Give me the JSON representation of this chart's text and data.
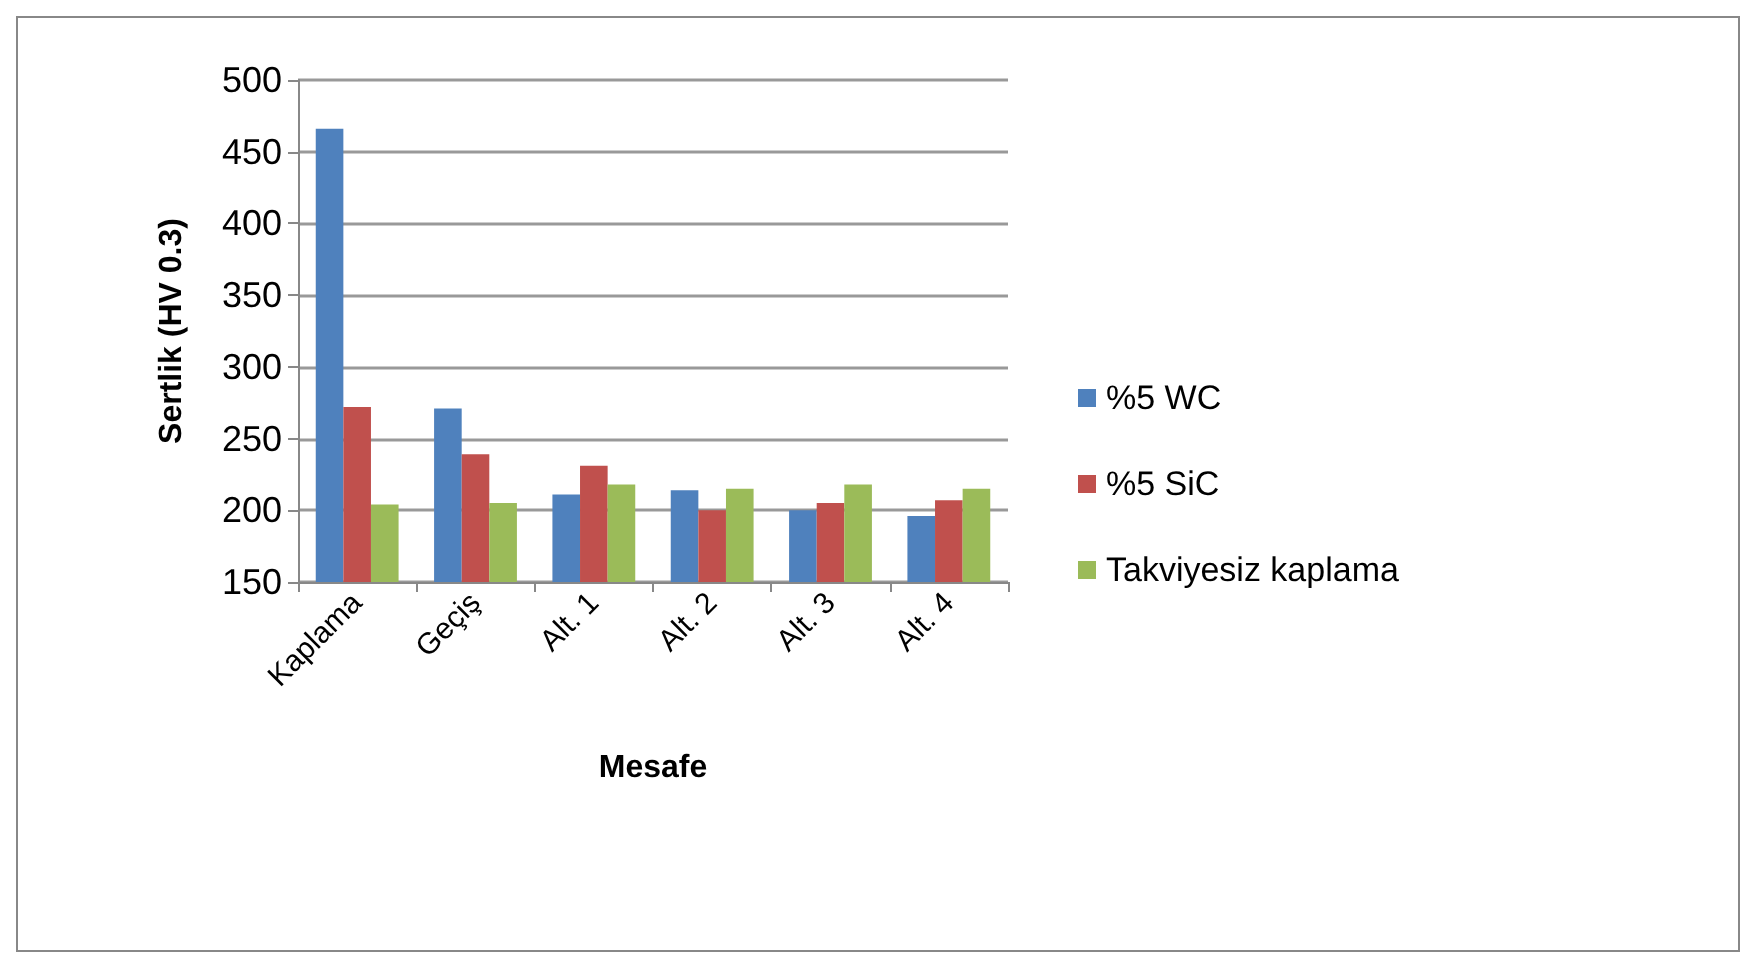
{
  "chart_data": {
    "type": "bar",
    "xlabel": "Mesafe",
    "ylabel": "Sertlik (HV 0.3)",
    "categories": [
      "Kaplama",
      "Geçiş",
      "Alt. 1",
      "Alt. 2",
      "Alt. 3",
      "Alt. 4"
    ],
    "series": [
      {
        "name": "%5 WC",
        "color": "#4f81bd",
        "values": [
          466,
          271,
          211,
          214,
          200,
          196
        ]
      },
      {
        "name": "%5 SiC",
        "color": "#c0504d",
        "values": [
          272,
          239,
          231,
          200,
          205,
          207
        ]
      },
      {
        "name": "Takviyesiz kaplama",
        "color": "#9bbb59",
        "values": [
          204,
          205,
          218,
          215,
          218,
          215
        ]
      }
    ],
    "ylim": [
      150,
      500
    ],
    "yticks": [
      150,
      200,
      250,
      300,
      350,
      400,
      450,
      500
    ],
    "grid": "y",
    "legend": "right"
  }
}
